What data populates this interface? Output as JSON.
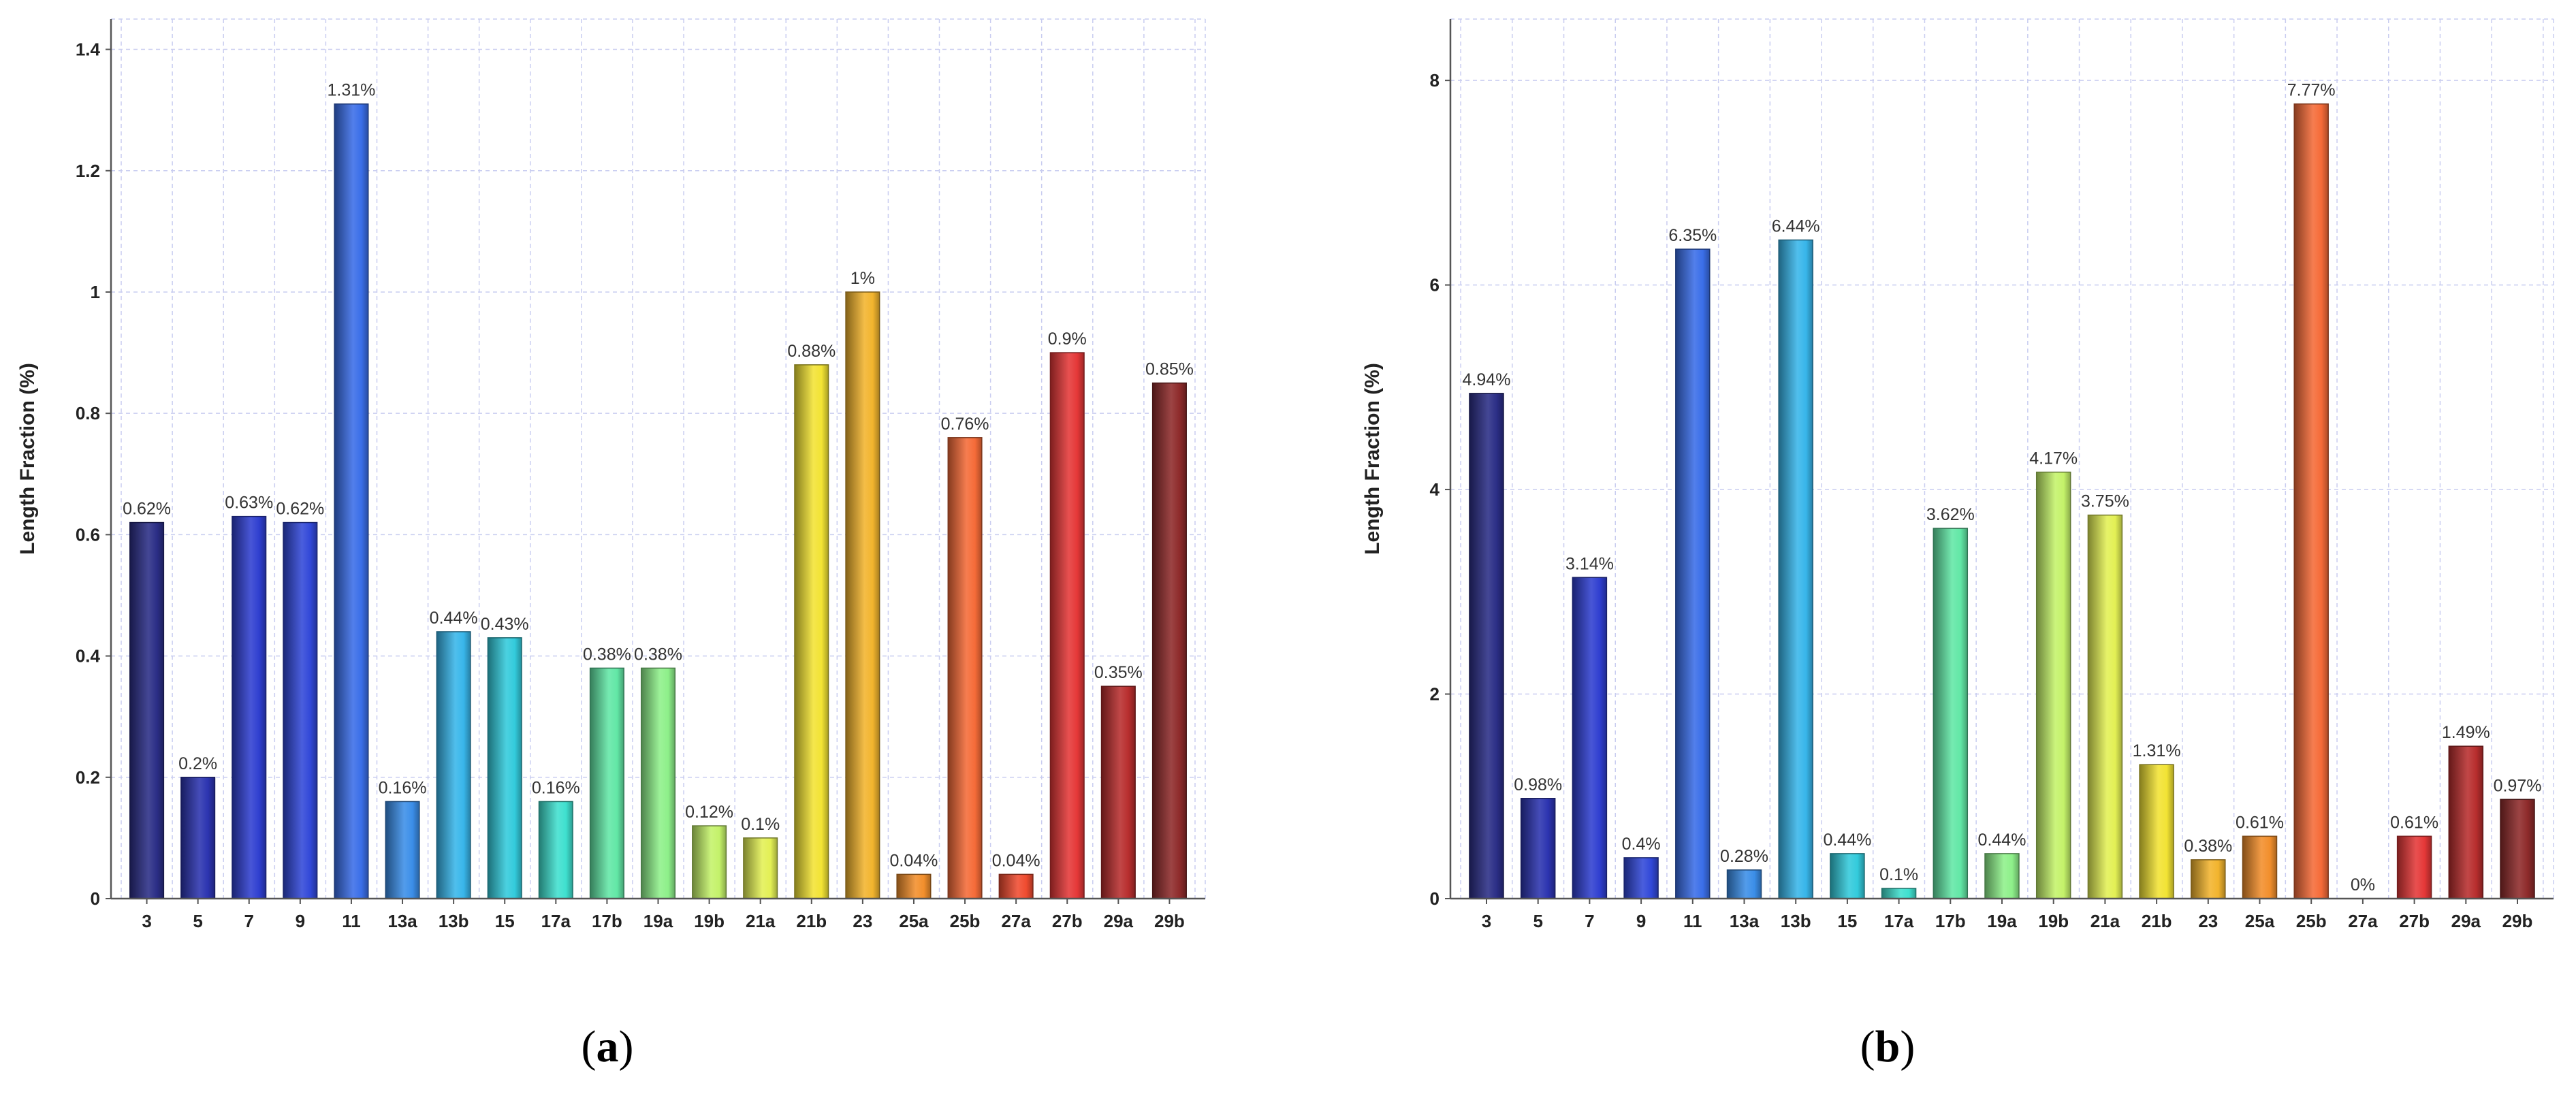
{
  "chart_data": [
    {
      "type": "bar",
      "panel_label": "a",
      "ylabel": "Length Fraction (%)",
      "ylim": [
        0,
        1.45
      ],
      "yticks": [
        "0",
        "0.2",
        "0.4",
        "0.6",
        "0.8",
        "1",
        "1.2",
        "1.4"
      ],
      "ytick_values": [
        0,
        0.2,
        0.4,
        0.6,
        0.8,
        1.0,
        1.2,
        1.4
      ],
      "grid": true,
      "categories": [
        "3",
        "5",
        "7",
        "9",
        "11",
        "13a",
        "13b",
        "15",
        "17a",
        "17b",
        "19a",
        "19b",
        "21a",
        "21b",
        "23",
        "25a",
        "25b",
        "27a",
        "27b",
        "29a",
        "29b"
      ],
      "values": [
        0.62,
        0.2,
        0.63,
        0.62,
        1.31,
        0.16,
        0.44,
        0.43,
        0.16,
        0.38,
        0.38,
        0.12,
        0.1,
        0.88,
        1.0,
        0.04,
        0.76,
        0.04,
        0.9,
        0.35,
        0.85
      ],
      "data_labels": [
        "0.62%",
        "0.2%",
        "0.63%",
        "0.62%",
        "1.31%",
        "0.16%",
        "0.44%",
        "0.43%",
        "0.16%",
        "0.38%",
        "0.38%",
        "0.12%",
        "0.1%",
        "0.88%",
        "1%",
        "0.04%",
        "0.76%",
        "0.04%",
        "0.9%",
        "0.35%",
        "0.85%"
      ],
      "colors": [
        "#2b2e86",
        "#2c34b0",
        "#2f3fd0",
        "#3148d8",
        "#3a6ee8",
        "#3b8ee8",
        "#38b6ea",
        "#33cbdc",
        "#3fe0cf",
        "#62e7a6",
        "#8ef08a",
        "#c4f26a",
        "#e3f055",
        "#f2e334",
        "#f2b42e",
        "#f28f2c",
        "#f56b38",
        "#f04c30",
        "#e53838",
        "#b82e2e",
        "#8e2b2b"
      ]
    },
    {
      "type": "bar",
      "panel_label": "b",
      "ylabel": "Length Fraction (%)",
      "ylim": [
        0,
        8.6
      ],
      "yticks": [
        "0",
        "2",
        "4",
        "6",
        "8"
      ],
      "ytick_values": [
        0,
        2,
        4,
        6,
        8
      ],
      "grid": true,
      "categories": [
        "3",
        "5",
        "7",
        "9",
        "11",
        "13a",
        "13b",
        "15",
        "17a",
        "17b",
        "19a",
        "19b",
        "21a",
        "21b",
        "23",
        "25a",
        "25b",
        "27a",
        "27b",
        "29a",
        "29b"
      ],
      "values": [
        4.94,
        0.98,
        3.14,
        0.4,
        6.35,
        0.28,
        6.44,
        0.44,
        0.1,
        3.62,
        0.44,
        4.17,
        3.75,
        1.31,
        0.38,
        0.61,
        7.77,
        0,
        0.61,
        1.49,
        0.97
      ],
      "data_labels": [
        "4.94%",
        "0.98%",
        "3.14%",
        "0.4%",
        "6.35%",
        "0.28%",
        "6.44%",
        "0.44%",
        "0.1%",
        "3.62%",
        "0.44%",
        "4.17%",
        "3.75%",
        "1.31%",
        "0.38%",
        "0.61%",
        "7.77%",
        "0%",
        "0.61%",
        "1.49%",
        "0.97%"
      ],
      "colors": [
        "#2b2e86",
        "#2c34b0",
        "#2f3fd0",
        "#3148d8",
        "#3a6ee8",
        "#3b8ee8",
        "#38b6ea",
        "#33cbdc",
        "#3fe0cf",
        "#62e7a6",
        "#8ef08a",
        "#c4f26a",
        "#e3f055",
        "#f2e334",
        "#f2b42e",
        "#f28f2c",
        "#f56b38",
        "#f04c30",
        "#e53838",
        "#b82e2e",
        "#8e2b2b"
      ]
    }
  ],
  "captions": {
    "a": "a",
    "b": "b"
  }
}
